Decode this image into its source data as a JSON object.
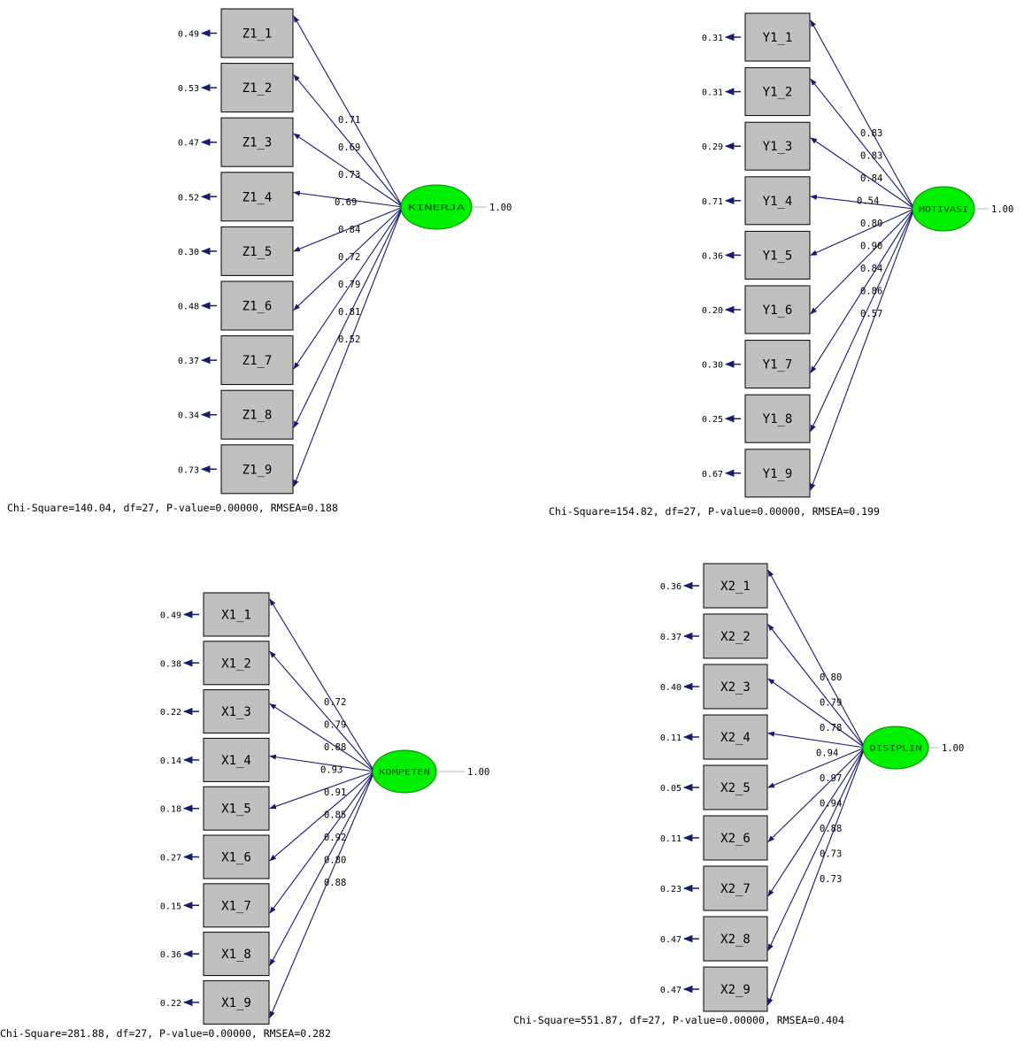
{
  "colors": {
    "box_fill": "#c0c0c0",
    "box_stroke": "#000000",
    "latent_fill": "#00ee00",
    "latent_text": "#005500",
    "arrow": "#1a1a6e",
    "text": "#000000",
    "variance_line": "#a0c8a0"
  },
  "models": [
    {
      "latent": "KINERJA",
      "latent_variance": "1.00",
      "fit": "Chi-Square=140.04, df=27, P-value=0.00000, RMSEA=0.188",
      "indicators": [
        {
          "label": "Z1_1",
          "error": "0.49",
          "loading": "0.71"
        },
        {
          "label": "Z1_2",
          "error": "0.53",
          "loading": "0.69"
        },
        {
          "label": "Z1_3",
          "error": "0.47",
          "loading": "0.73"
        },
        {
          "label": "Z1_4",
          "error": "0.52",
          "loading": "0.69"
        },
        {
          "label": "Z1_5",
          "error": "0.30",
          "loading": "0.84"
        },
        {
          "label": "Z1_6",
          "error": "0.48",
          "loading": "0.72"
        },
        {
          "label": "Z1_7",
          "error": "0.37",
          "loading": "0.79"
        },
        {
          "label": "Z1_8",
          "error": "0.34",
          "loading": "0.81"
        },
        {
          "label": "Z1_9",
          "error": "0.73",
          "loading": "0.52"
        }
      ]
    },
    {
      "latent": "MOTIVASI",
      "latent_variance": "1.00",
      "fit": "Chi-Square=154.82, df=27, P-value=0.00000, RMSEA=0.199",
      "indicators": [
        {
          "label": "Y1_1",
          "error": "0.31",
          "loading": "0.83"
        },
        {
          "label": "Y1_2",
          "error": "0.31",
          "loading": "0.83"
        },
        {
          "label": "Y1_3",
          "error": "0.29",
          "loading": "0.84"
        },
        {
          "label": "Y1_4",
          "error": "0.71",
          "loading": "0.54"
        },
        {
          "label": "Y1_5",
          "error": "0.36",
          "loading": "0.80"
        },
        {
          "label": "Y1_6",
          "error": "0.20",
          "loading": "0.90"
        },
        {
          "label": "Y1_7",
          "error": "0.30",
          "loading": "0.84"
        },
        {
          "label": "Y1_8",
          "error": "0.25",
          "loading": "0.86"
        },
        {
          "label": "Y1_9",
          "error": "0.67",
          "loading": "0.57"
        }
      ]
    },
    {
      "latent": "KOMPETEN",
      "latent_variance": "1.00",
      "fit": "Chi-Square=281.88, df=27, P-value=0.00000, RMSEA=0.282",
      "indicators": [
        {
          "label": "X1_1",
          "error": "0.49",
          "loading": "0.72"
        },
        {
          "label": "X1_2",
          "error": "0.38",
          "loading": "0.79"
        },
        {
          "label": "X1_3",
          "error": "0.22",
          "loading": "0.88"
        },
        {
          "label": "X1_4",
          "error": "0.14",
          "loading": "0.93"
        },
        {
          "label": "X1_5",
          "error": "0.18",
          "loading": "0.91"
        },
        {
          "label": "X1_6",
          "error": "0.27",
          "loading": "0.85"
        },
        {
          "label": "X1_7",
          "error": "0.15",
          "loading": "0.92"
        },
        {
          "label": "X1_8",
          "error": "0.36",
          "loading": "0.80"
        },
        {
          "label": "X1_9",
          "error": "0.22",
          "loading": "0.88"
        }
      ]
    },
    {
      "latent": "DISIPLIN",
      "latent_variance": "1.00",
      "fit": "Chi-Square=551.87, df=27, P-value=0.00000, RMSEA=0.404",
      "indicators": [
        {
          "label": "X2_1",
          "error": "0.36",
          "loading": "0.80"
        },
        {
          "label": "X2_2",
          "error": "0.37",
          "loading": "0.79"
        },
        {
          "label": "X2_3",
          "error": "0.40",
          "loading": "0.78"
        },
        {
          "label": "X2_4",
          "error": "0.11",
          "loading": "0.94"
        },
        {
          "label": "X2_5",
          "error": "0.05",
          "loading": "0.97"
        },
        {
          "label": "X2_6",
          "error": "0.11",
          "loading": "0.94"
        },
        {
          "label": "X2_7",
          "error": "0.23",
          "loading": "0.88"
        },
        {
          "label": "X2_8",
          "error": "0.47",
          "loading": "0.73"
        },
        {
          "label": "X2_9",
          "error": "0.47",
          "loading": "0.73"
        }
      ]
    }
  ]
}
